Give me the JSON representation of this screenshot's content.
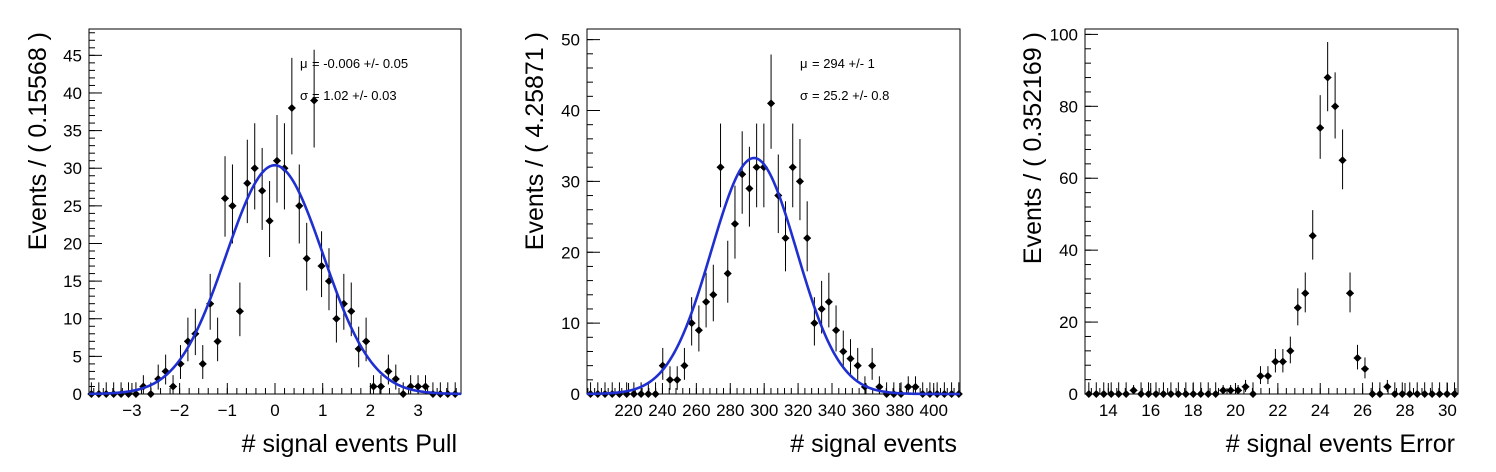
{
  "figure": {
    "background": "#ffffff",
    "fit_color": "#1f2fd0",
    "marker_color": "#000000"
  },
  "chart_data": [
    {
      "type": "scatter",
      "name": "pull",
      "xlabel": "# signal events Pull",
      "ylabel": "Events / ( 0.15568 )",
      "xlim": [
        -3.9,
        3.9
      ],
      "ylim": [
        0,
        48.5
      ],
      "xticks": [
        -3,
        -2,
        -1,
        0,
        1,
        2,
        3
      ],
      "xtick_labels": [
        "−3",
        "−2",
        "−1",
        "0",
        "1",
        "2",
        "3"
      ],
      "yticks": [
        0,
        5,
        10,
        15,
        20,
        25,
        30,
        35,
        40,
        45
      ],
      "ytick_labels": [
        "0",
        "5",
        "10",
        "15",
        "20",
        "25",
        "30",
        "35",
        "40",
        "45"
      ],
      "xminor_step": 0.2,
      "yminor_step": 1,
      "bin_width": 0.15568,
      "points_start": -3.85,
      "values": [
        0,
        0,
        0,
        0,
        0,
        0,
        0,
        1,
        0,
        2,
        3,
        1,
        4,
        7,
        8,
        4,
        12,
        7,
        26,
        25,
        11,
        28,
        30,
        27,
        23,
        31,
        30,
        38,
        25,
        18,
        39,
        17,
        15,
        10,
        12,
        11,
        6,
        7,
        1,
        1,
        3,
        2,
        0,
        1,
        1,
        1,
        0,
        0,
        0,
        0
      ],
      "fit": {
        "type": "gaussian",
        "mean": -0.006,
        "sigma": 1.02,
        "amplitude": 30.4
      },
      "stats": [
        {
          "symbol": "μ",
          "text": "= -0.006 +/- 0.05"
        },
        {
          "symbol": "σ",
          "text": "=  1.02 +/- 0.03"
        }
      ]
    },
    {
      "type": "scatter",
      "name": "signal",
      "xlabel": "# signal events",
      "ylabel": "Events / ( 4.25871 )",
      "xlim": [
        195.5,
        415.5
      ],
      "ylim": [
        0,
        51.5
      ],
      "xticks": [
        220,
        240,
        260,
        280,
        300,
        320,
        340,
        360,
        380,
        400
      ],
      "xtick_labels": [
        "220",
        "240",
        "260",
        "280",
        "300",
        "320",
        "340",
        "360",
        "380",
        "400"
      ],
      "yticks": [
        0,
        10,
        20,
        30,
        40,
        50
      ],
      "ytick_labels": [
        "0",
        "10",
        "20",
        "30",
        "40",
        "50"
      ],
      "xminor_step": 4,
      "yminor_step": 2,
      "bin_width": 4.25871,
      "points_start": 197.6,
      "values": [
        0,
        0,
        0,
        0,
        0,
        0,
        0,
        0,
        0,
        0,
        4,
        2,
        2,
        4,
        10,
        9,
        13,
        14,
        32,
        17,
        24,
        31,
        29,
        32,
        32,
        41,
        28,
        22,
        32,
        30,
        22,
        10,
        12,
        13,
        9,
        6,
        5,
        4,
        1,
        4,
        1,
        0,
        0,
        0,
        1,
        1,
        0,
        0,
        0,
        0,
        0,
        0
      ],
      "fit": {
        "type": "gaussian",
        "mean": 294,
        "sigma": 25.2,
        "amplitude": 33.3
      },
      "stats": [
        {
          "symbol": "μ",
          "text": "=  294 +/- 1"
        },
        {
          "symbol": "σ",
          "text": "=  25.2 +/- 0.8"
        }
      ]
    },
    {
      "type": "scatter",
      "name": "error",
      "xlabel": "# signal events Error",
      "ylabel": "Events / ( 0.352169 )",
      "xlim": [
        12.9,
        30.5
      ],
      "ylim": [
        0,
        101.5
      ],
      "xticks": [
        14,
        16,
        18,
        20,
        22,
        24,
        26,
        28,
        30
      ],
      "xtick_labels": [
        "14",
        "16",
        "18",
        "20",
        "22",
        "24",
        "26",
        "28",
        "30"
      ],
      "yticks": [
        0,
        20,
        40,
        60,
        80,
        100
      ],
      "ytick_labels": [
        "0",
        "20",
        "40",
        "60",
        "80",
        "100"
      ],
      "xminor_step": 0.4,
      "yminor_step": 4,
      "bin_width": 0.352169,
      "points_start": 13.08,
      "values": [
        0,
        0,
        0,
        0,
        0,
        0,
        1,
        0,
        0,
        0,
        0,
        0,
        0,
        0,
        0,
        0,
        0,
        0,
        1,
        1,
        1,
        2,
        0,
        5,
        5,
        9,
        9,
        12,
        24,
        28,
        44,
        74,
        88,
        80,
        65,
        28,
        10,
        7,
        0,
        0,
        2,
        0,
        0,
        0,
        0,
        0,
        0,
        0,
        0,
        0
      ]
    }
  ]
}
